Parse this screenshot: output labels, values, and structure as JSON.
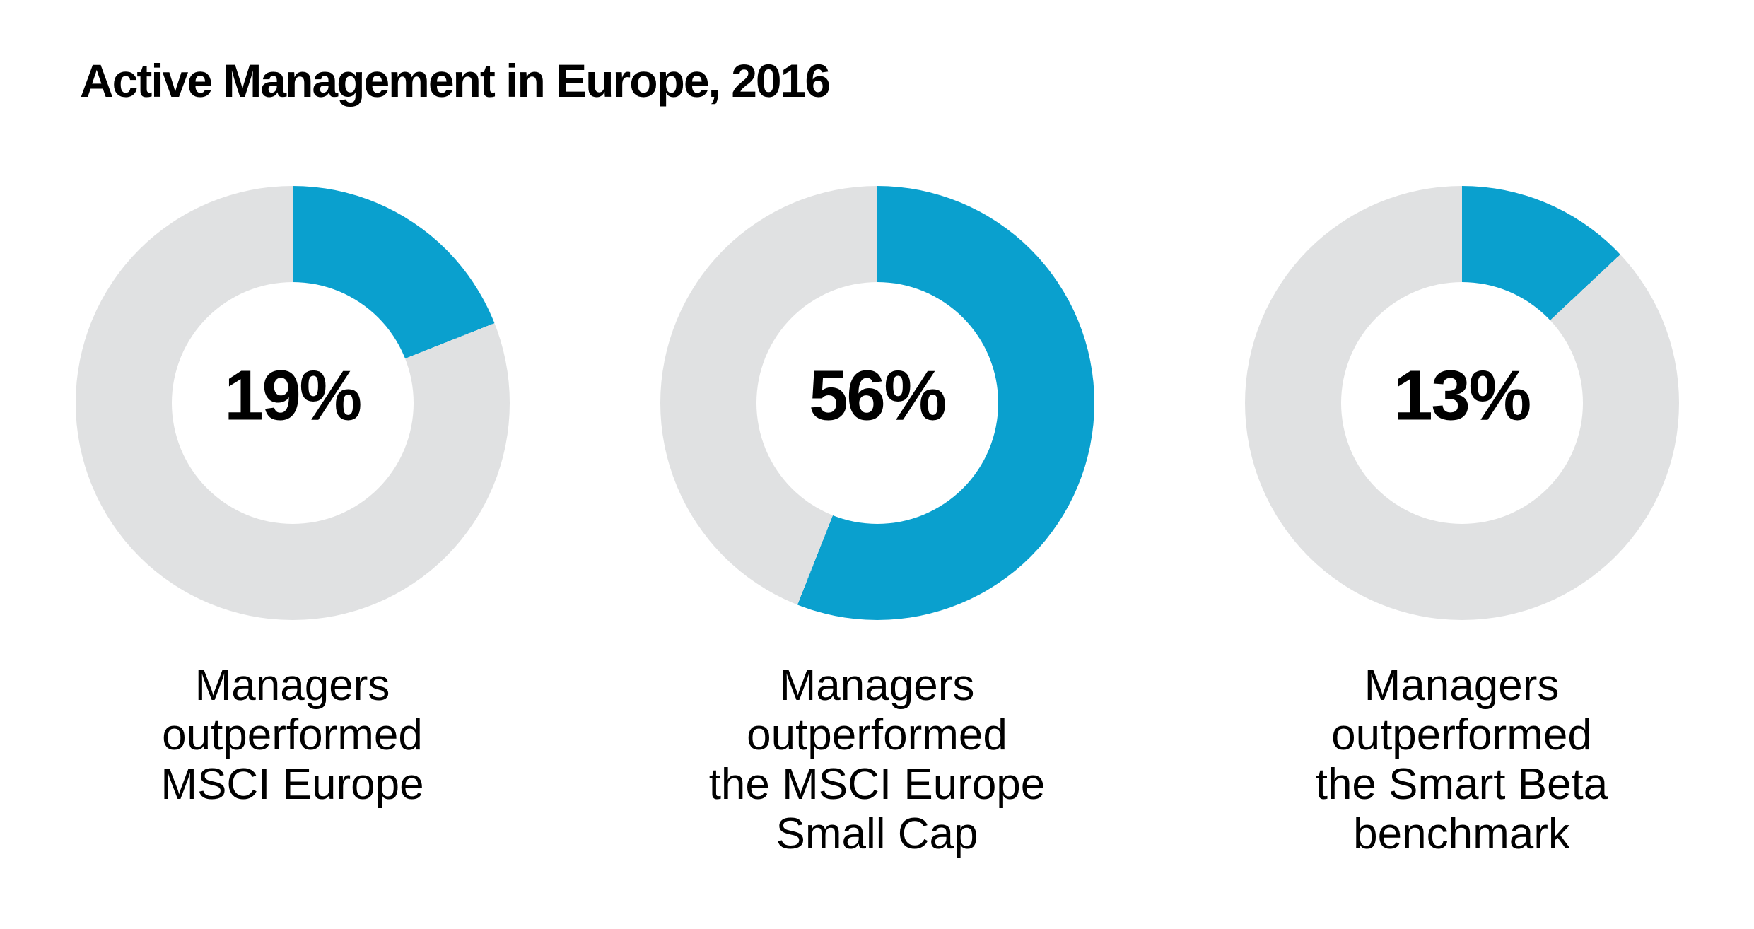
{
  "title": "Active Management in Europe, 2016",
  "colors": {
    "accent_blue": "#0aa0ce",
    "track_gray": "#e0e1e2",
    "text_black": "#000000",
    "background": "#ffffff"
  },
  "chart_data": {
    "type": "pie",
    "subtype": "donut",
    "title": "Active Management in Europe, 2016",
    "unit": "%",
    "start_angle": "12 o'clock",
    "direction": "clockwise",
    "legend": "none",
    "filled_color": "#0aa0ce",
    "remainder_color": "#e0e1e2",
    "charts": [
      {
        "value": 19,
        "value_label": "19%",
        "caption": "Managers outperformed MSCI Europe",
        "caption_lines": {
          "0": "Managers",
          "1": "outperformed",
          "2": "MSCI Europe"
        }
      },
      {
        "value": 56,
        "value_label": "56%",
        "caption": "Managers outperformed the MSCI Europe Small Cap",
        "caption_lines": {
          "0": "Managers",
          "1": "outperformed",
          "2": "the MSCI Europe",
          "3": "Small Cap"
        }
      },
      {
        "value": 13,
        "value_label": "13%",
        "caption": "Managers outperformed the Smart Beta benchmark",
        "caption_lines": {
          "0": "Managers",
          "1": "outperformed",
          "2": "the Smart Beta",
          "3": "benchmark"
        }
      }
    ]
  }
}
